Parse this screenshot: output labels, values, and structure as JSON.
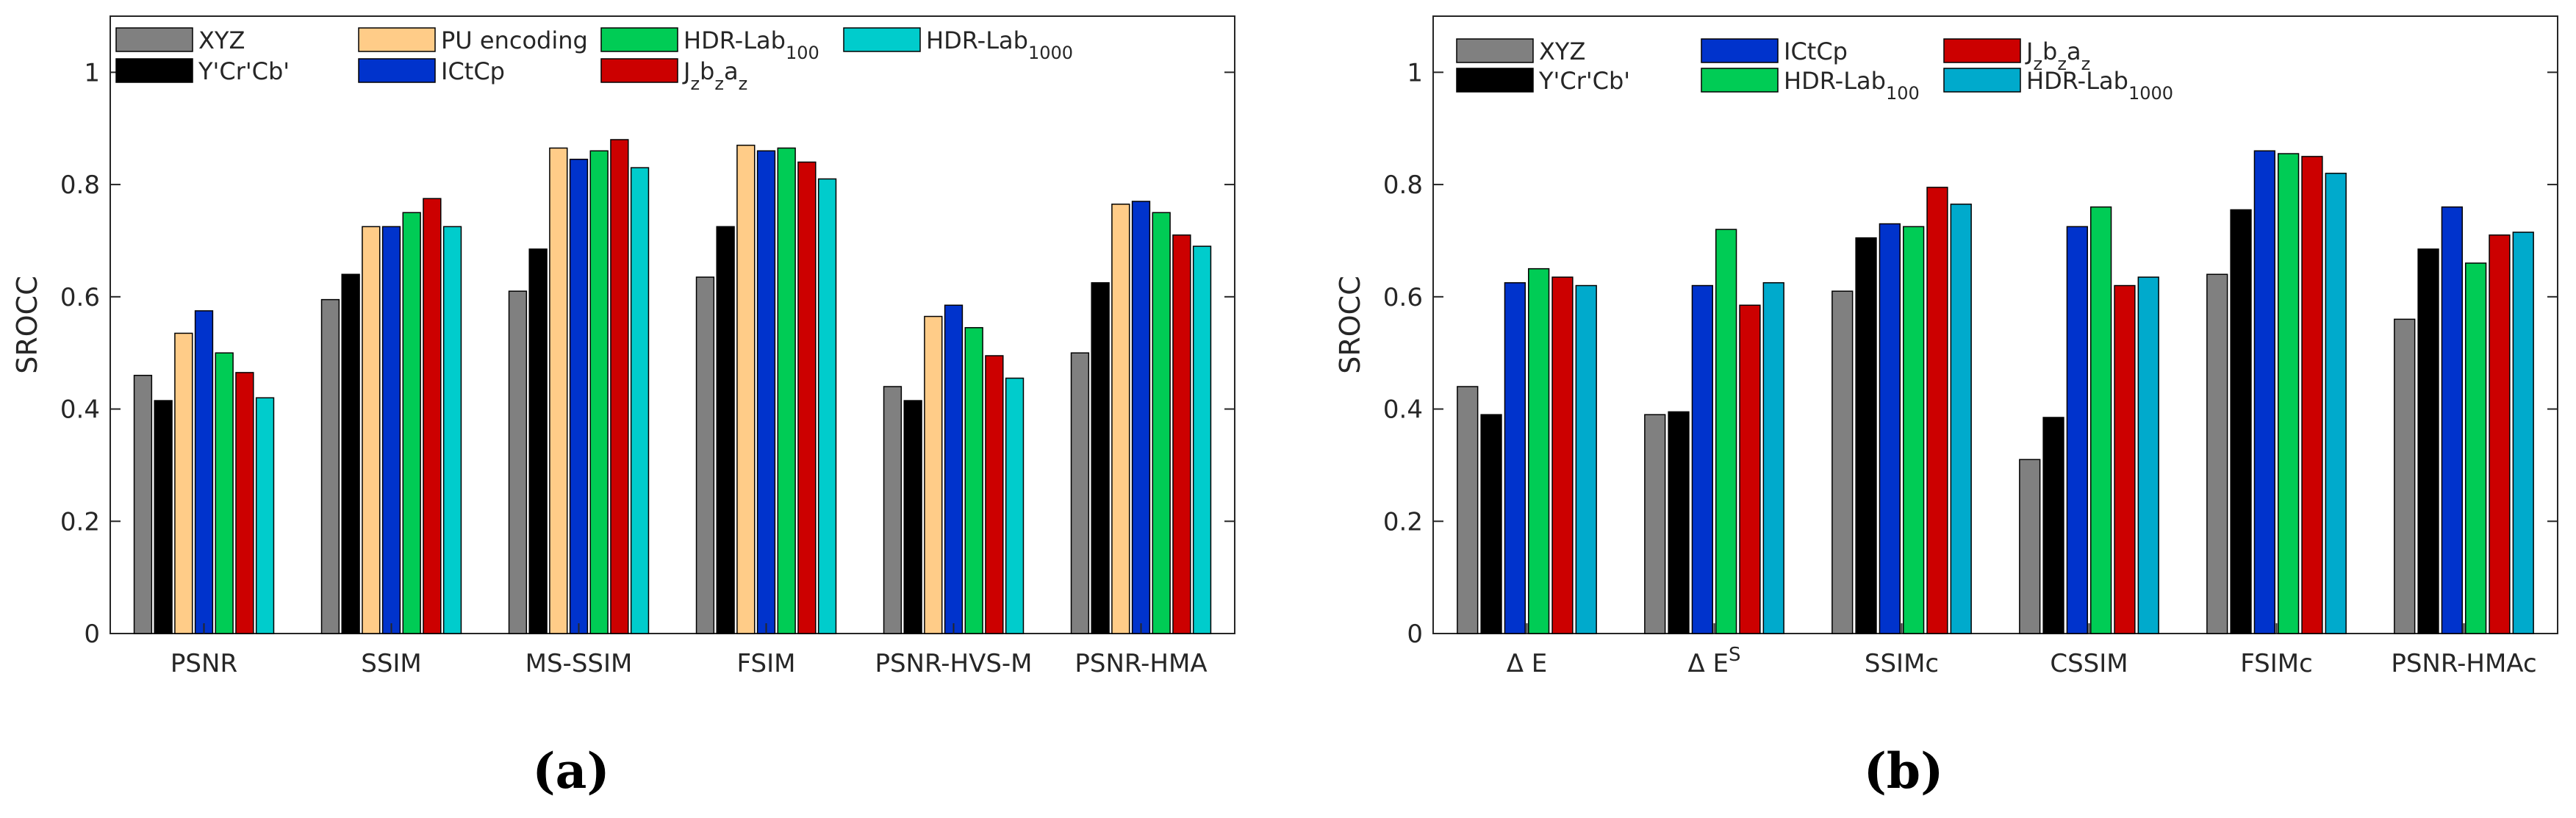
{
  "chart_data": [
    {
      "type": "bar",
      "panel": "(a)",
      "ylabel": "SROCC",
      "ylim": [
        0,
        1.1
      ],
      "yticks": [
        "0",
        "0.2",
        "0.4",
        "0.6",
        "0.8",
        "1"
      ],
      "grid": false,
      "legend_position": "top",
      "categories": [
        {
          "label": "PSNR"
        },
        {
          "label": "SSIM"
        },
        {
          "label": "MS-SSIM"
        },
        {
          "label": "FSIM"
        },
        {
          "label": "PSNR-HVS-M"
        },
        {
          "label": "PSNR-HMA"
        }
      ],
      "series": [
        {
          "name": "XYZ",
          "color": "#808080",
          "values": [
            0.46,
            0.595,
            0.61,
            0.635,
            0.44,
            0.5
          ]
        },
        {
          "name": "Y'Cr'Cb'",
          "color": "#000000",
          "values": [
            0.415,
            0.64,
            0.685,
            0.725,
            0.415,
            0.625
          ]
        },
        {
          "name": "PU encoding",
          "color": "#FFCC88",
          "values": [
            0.535,
            0.725,
            0.865,
            0.87,
            0.565,
            0.765
          ]
        },
        {
          "name": "ICtCp",
          "color": "#0033CC",
          "values": [
            0.575,
            0.725,
            0.845,
            0.86,
            0.585,
            0.77
          ]
        },
        {
          "name": "HDR-Lab",
          "sub": "100",
          "color": "#00CC55",
          "values": [
            0.5,
            0.75,
            0.86,
            0.865,
            0.545,
            0.75
          ]
        },
        {
          "name": "J",
          "subparts": [
            "z",
            "b",
            "z",
            "a",
            "z"
          ],
          "color": "#CC0000",
          "values": [
            0.465,
            0.775,
            0.88,
            0.84,
            0.495,
            0.71
          ]
        },
        {
          "name": "HDR-Lab",
          "sub": "1000",
          "color": "#00CCCC",
          "values": [
            0.42,
            0.725,
            0.83,
            0.81,
            0.455,
            0.69
          ]
        }
      ]
    },
    {
      "type": "bar",
      "panel": "(b)",
      "ylabel": "SROCC",
      "ylim": [
        0,
        1.1
      ],
      "yticks": [
        "0",
        "0.2",
        "0.4",
        "0.6",
        "0.8",
        "1"
      ],
      "grid": false,
      "legend_position": "top",
      "categories": [
        {
          "label": "Δ E"
        },
        {
          "label": "Δ E",
          "sup": "S"
        },
        {
          "label": "SSIMc"
        },
        {
          "label": "CSSIM"
        },
        {
          "label": "FSIMc"
        },
        {
          "label": "PSNR-HMAc"
        }
      ],
      "series": [
        {
          "name": "XYZ",
          "color": "#808080",
          "values": [
            0.44,
            0.39,
            0.61,
            0.31,
            0.64,
            0.56
          ]
        },
        {
          "name": "Y'Cr'Cb'",
          "color": "#000000",
          "values": [
            0.39,
            0.395,
            0.705,
            0.385,
            0.755,
            0.685
          ]
        },
        {
          "name": "ICtCp",
          "color": "#0033CC",
          "values": [
            0.625,
            0.62,
            0.73,
            0.725,
            0.86,
            0.76
          ]
        },
        {
          "name": "HDR-Lab",
          "sub": "100",
          "color": "#00CC55",
          "values": [
            0.65,
            0.72,
            0.725,
            0.76,
            0.855,
            0.66
          ]
        },
        {
          "name": "J",
          "subparts": [
            "z",
            "b",
            "z",
            "a",
            "z"
          ],
          "color": "#CC0000",
          "values": [
            0.635,
            0.585,
            0.795,
            0.62,
            0.85,
            0.71
          ]
        },
        {
          "name": "HDR-Lab",
          "sub": "1000",
          "color": "#00AACC",
          "values": [
            0.62,
            0.625,
            0.765,
            0.635,
            0.82,
            0.715
          ]
        }
      ]
    }
  ]
}
